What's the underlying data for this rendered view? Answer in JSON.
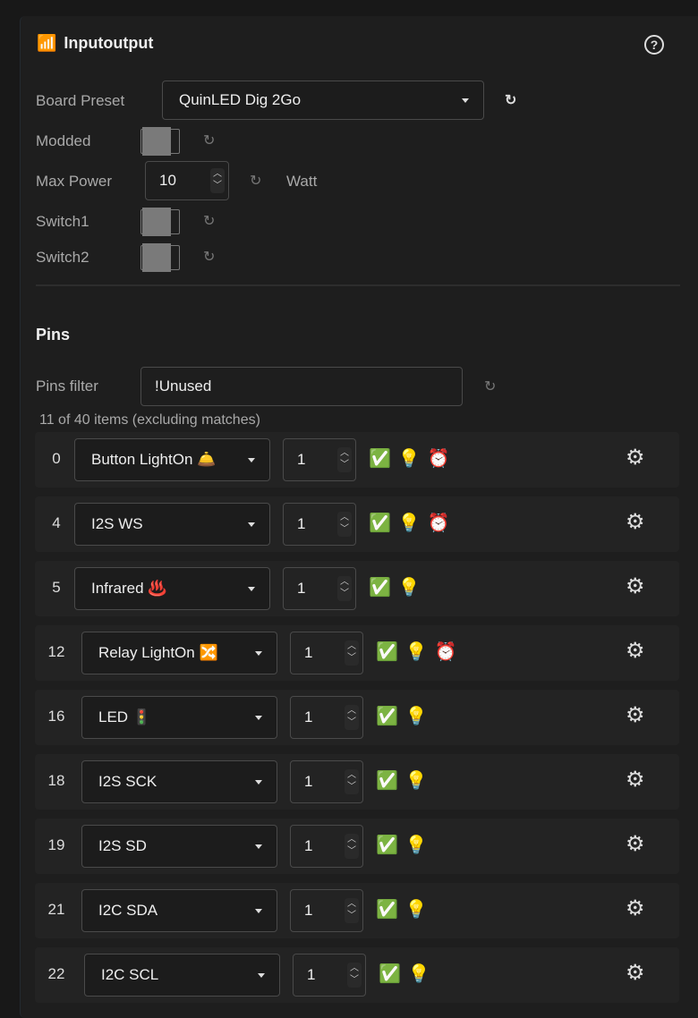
{
  "panel": {
    "title": "Inputoutput",
    "icon": "router-icon",
    "help_icon": "help-circle-icon"
  },
  "settings": {
    "board_preset_label": "Board Preset",
    "board_preset_value": "QuinLED Dig 2Go",
    "modded_label": "Modded",
    "modded_checked": false,
    "max_power_label": "Max Power",
    "max_power_value": "10",
    "max_power_unit": "Watt",
    "switch1_label": "Switch1",
    "switch1_checked": false,
    "switch2_label": "Switch2",
    "switch2_checked": false
  },
  "pins": {
    "title": "Pins",
    "filter_label": "Pins filter",
    "filter_value": "!Unused",
    "count_text": "11 of 40 items (excluding matches)",
    "rows": [
      {
        "pin": "0",
        "usage": "Button LightOn 🛎️",
        "value": "1",
        "icons": [
          "✅",
          "💡",
          "⏰"
        ]
      },
      {
        "pin": "4",
        "usage": "I2S WS",
        "value": "1",
        "icons": [
          "✅",
          "💡",
          "⏰"
        ]
      },
      {
        "pin": "5",
        "usage": "Infrared ♨️",
        "value": "1",
        "icons": [
          "✅",
          "💡"
        ]
      },
      {
        "pin": "12",
        "usage": "Relay LightOn 🔀",
        "value": "1",
        "icons": [
          "✅",
          "💡",
          "⏰"
        ]
      },
      {
        "pin": "16",
        "usage": "LED 🚦",
        "value": "1",
        "icons": [
          "✅",
          "💡"
        ]
      },
      {
        "pin": "18",
        "usage": "I2S SCK",
        "value": "1",
        "icons": [
          "✅",
          "💡"
        ]
      },
      {
        "pin": "19",
        "usage": "I2S SD",
        "value": "1",
        "icons": [
          "✅",
          "💡"
        ]
      },
      {
        "pin": "21",
        "usage": "I2C SDA",
        "value": "1",
        "icons": [
          "✅",
          "💡"
        ]
      },
      {
        "pin": "22",
        "usage": "I2C SCL",
        "value": "1",
        "icons": [
          "✅",
          "💡"
        ]
      }
    ]
  }
}
